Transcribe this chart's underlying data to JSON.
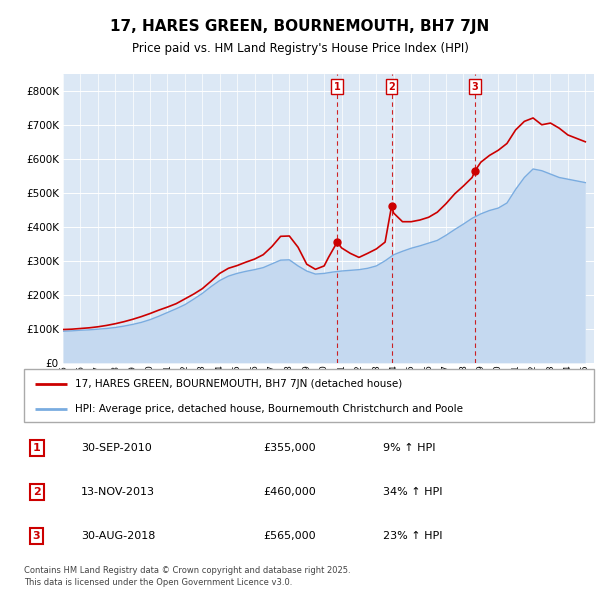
{
  "title": "17, HARES GREEN, BOURNEMOUTH, BH7 7JN",
  "subtitle": "Price paid vs. HM Land Registry's House Price Index (HPI)",
  "legend_line1": "17, HARES GREEN, BOURNEMOUTH, BH7 7JN (detached house)",
  "legend_line2": "HPI: Average price, detached house, Bournemouth Christchurch and Poole",
  "footer1": "Contains HM Land Registry data © Crown copyright and database right 2025.",
  "footer2": "This data is licensed under the Open Government Licence v3.0.",
  "sale_color": "#cc0000",
  "hpi_fill_color": "#c5d9f0",
  "hpi_line_color": "#7aace0",
  "chart_bg": "#dce8f5",
  "ylim": [
    0,
    850000
  ],
  "yticks": [
    0,
    100000,
    200000,
    300000,
    400000,
    500000,
    600000,
    700000,
    800000
  ],
  "sales": [
    {
      "label": "1",
      "date": "30-SEP-2010",
      "price": 355000,
      "hpi_pct": "9%",
      "x": 2010.75
    },
    {
      "label": "2",
      "date": "13-NOV-2013",
      "price": 460000,
      "hpi_pct": "34%",
      "x": 2013.87
    },
    {
      "label": "3",
      "date": "30-AUG-2018",
      "price": 565000,
      "hpi_pct": "23%",
      "x": 2018.67
    }
  ],
  "hpi_years": [
    1995,
    1995.5,
    1996,
    1996.5,
    1997,
    1997.5,
    1998,
    1998.5,
    1999,
    1999.5,
    2000,
    2000.5,
    2001,
    2001.5,
    2002,
    2002.5,
    2003,
    2003.5,
    2004,
    2004.5,
    2005,
    2005.5,
    2006,
    2006.5,
    2007,
    2007.5,
    2008,
    2008.5,
    2009,
    2009.5,
    2010,
    2010.5,
    2011,
    2011.5,
    2012,
    2012.5,
    2013,
    2013.5,
    2014,
    2014.5,
    2015,
    2015.5,
    2016,
    2016.5,
    2017,
    2017.5,
    2018,
    2018.5,
    2019,
    2019.5,
    2020,
    2020.5,
    2021,
    2021.5,
    2022,
    2022.5,
    2023,
    2023.5,
    2024,
    2024.5,
    2025
  ],
  "hpi_values": [
    93000,
    94000,
    96000,
    97000,
    99000,
    101000,
    104000,
    108000,
    113000,
    119000,
    127000,
    137000,
    148000,
    159000,
    171000,
    187000,
    204000,
    224000,
    242000,
    255000,
    263000,
    269000,
    274000,
    280000,
    291000,
    302000,
    303000,
    285000,
    270000,
    261000,
    263000,
    267000,
    270000,
    272000,
    274000,
    278000,
    285000,
    300000,
    318000,
    328000,
    337000,
    344000,
    352000,
    360000,
    375000,
    392000,
    408000,
    425000,
    438000,
    448000,
    455000,
    470000,
    510000,
    545000,
    570000,
    565000,
    555000,
    545000,
    540000,
    535000,
    530000
  ],
  "price_years": [
    1995,
    1995.5,
    1996,
    1996.5,
    1997,
    1997.5,
    1998,
    1998.5,
    1999,
    1999.5,
    2000,
    2000.5,
    2001,
    2001.5,
    2002,
    2002.5,
    2003,
    2003.5,
    2004,
    2004.5,
    2005,
    2005.5,
    2006,
    2006.5,
    2007,
    2007.5,
    2008,
    2008.5,
    2009,
    2009.5,
    2010,
    2010.25,
    2010.75,
    2011,
    2011.5,
    2012,
    2012.5,
    2013,
    2013.5,
    2013.87,
    2014,
    2014.5,
    2015,
    2015.5,
    2016,
    2016.5,
    2017,
    2017.5,
    2018,
    2018.5,
    2018.67,
    2019,
    2019.5,
    2020,
    2020.5,
    2021,
    2021.5,
    2022,
    2022.5,
    2023,
    2023.5,
    2024,
    2024.5,
    2025
  ],
  "price_values": [
    98000,
    99000,
    101000,
    103000,
    106000,
    110000,
    115000,
    121000,
    128000,
    136000,
    145000,
    155000,
    164000,
    174000,
    188000,
    202000,
    218000,
    240000,
    263000,
    278000,
    286000,
    296000,
    305000,
    318000,
    342000,
    372000,
    373000,
    340000,
    290000,
    275000,
    285000,
    310000,
    355000,
    338000,
    322000,
    310000,
    322000,
    335000,
    355000,
    460000,
    440000,
    415000,
    415000,
    420000,
    428000,
    443000,
    468000,
    497000,
    520000,
    545000,
    565000,
    590000,
    610000,
    625000,
    645000,
    685000,
    710000,
    720000,
    700000,
    705000,
    690000,
    670000,
    660000,
    650000
  ]
}
